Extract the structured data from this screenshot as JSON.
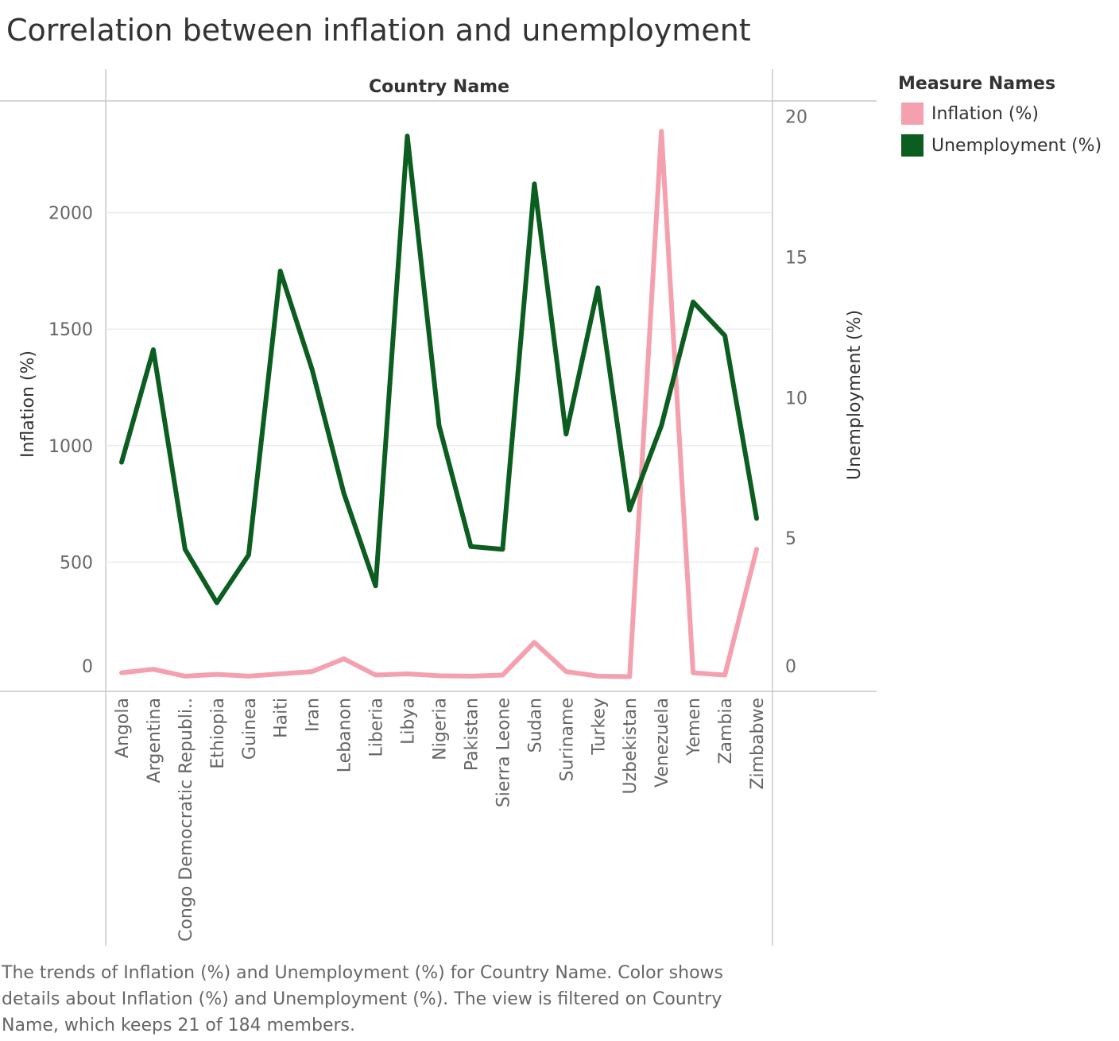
{
  "title": "Correlation between inflation and unemployment",
  "caption": "The trends of Inflation (%) and Unemployment (%) for Country Name.  Color shows details about Inflation (%) and Unemployment (%). The view is filtered on Country Name, which keeps 21 of 184 members.",
  "legend": {
    "title": "Measure Names",
    "items": [
      {
        "label": "Inflation (%)",
        "color": "#f4a0ae"
      },
      {
        "label": "Unemployment (%)",
        "color": "#0b5e1f"
      }
    ]
  },
  "chart_data": {
    "type": "line",
    "header": "Country Name",
    "categories": [
      "Angola",
      "Argentina",
      "Congo Democratic Republi..",
      "Ethiopia",
      "Guinea",
      "Haiti",
      "Iran",
      "Lebanon",
      "Liberia",
      "Libya",
      "Nigeria",
      "Pakistan",
      "Sierra Leone",
      "Sudan",
      "Suriname",
      "Turkey",
      "Uzbekistan",
      "Venezuela",
      "Yemen",
      "Zambia",
      "Zimbabwe"
    ],
    "left_axis": {
      "label": "Inflation (%)",
      "range": [
        -55,
        2480
      ],
      "ticks": [
        0,
        500,
        1000,
        1500,
        2000
      ]
    },
    "right_axis": {
      "label": "Unemployment (%)",
      "range": [
        -0.45,
        20.55
      ],
      "ticks": [
        0,
        5,
        10,
        15,
        20
      ]
    },
    "series": [
      {
        "name": "Inflation (%)",
        "axis": "left",
        "color": "#f4a0ae",
        "values": [
          25,
          40,
          10,
          18,
          10,
          20,
          30,
          85,
          15,
          20,
          12,
          10,
          15,
          155,
          30,
          10,
          8,
          2350,
          25,
          15,
          555
        ]
      },
      {
        "name": "Unemployment (%)",
        "axis": "right",
        "color": "#0b5e1f",
        "values": [
          7.7,
          11.7,
          4.6,
          2.7,
          4.4,
          14.5,
          11.0,
          6.6,
          3.3,
          19.3,
          9.0,
          4.7,
          4.6,
          17.6,
          8.7,
          13.9,
          6.0,
          9.0,
          13.4,
          12.2,
          5.7
        ]
      }
    ],
    "grid": true
  }
}
